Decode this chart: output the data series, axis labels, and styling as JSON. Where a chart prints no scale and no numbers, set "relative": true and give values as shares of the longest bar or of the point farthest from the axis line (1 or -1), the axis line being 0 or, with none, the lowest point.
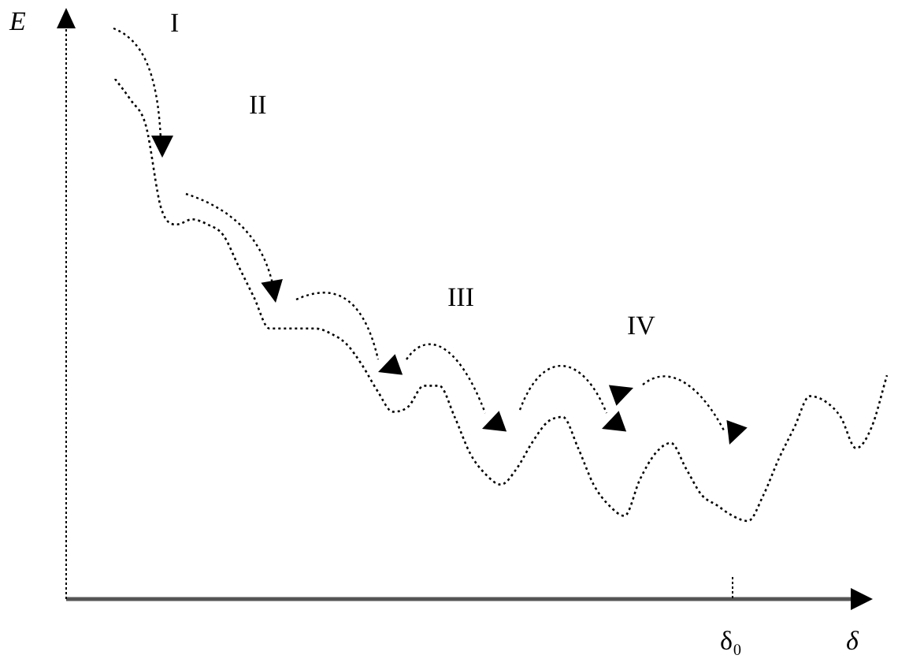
{
  "chart_data": {
    "type": "line",
    "xlabel": "δ",
    "ylabel": "E",
    "relative": true,
    "line_style": "dotted",
    "marker": "none",
    "annotations": [
      "I",
      "II",
      "III",
      "IV",
      "δ₀"
    ],
    "categories": [
      null,
      null,
      null,
      null,
      null,
      null,
      null,
      null,
      null,
      null,
      null,
      null,
      null,
      null,
      null,
      null,
      null,
      null,
      null,
      null,
      null,
      null,
      null,
      null,
      null,
      null,
      null,
      null,
      null,
      null,
      null,
      null,
      null,
      null,
      null,
      null,
      null,
      null,
      null,
      null,
      null,
      null,
      null,
      null,
      null,
      null,
      null,
      null,
      null,
      null,
      null
    ],
    "series": [
      {
        "color": "#000000",
        "values": [
          1.0,
          0.96,
          0.91,
          0.75,
          0.72,
          0.73,
          0.72,
          0.7,
          0.64,
          0.58,
          0.52,
          0.52,
          0.52,
          0.52,
          0.51,
          0.49,
          0.45,
          0.4,
          0.36,
          0.37,
          0.41,
          0.41,
          0.35,
          0.28,
          0.24,
          0.22,
          0.25,
          0.3,
          0.34,
          0.35,
          0.29,
          0.22,
          0.18,
          0.16,
          0.23,
          0.28,
          0.3,
          0.25,
          0.2,
          0.18,
          0.16,
          0.15,
          0.2,
          0.27,
          0.33,
          0.39,
          0.38,
          0.35,
          0.29,
          0.33,
          0.43
        ]
      }
    ]
  }
}
